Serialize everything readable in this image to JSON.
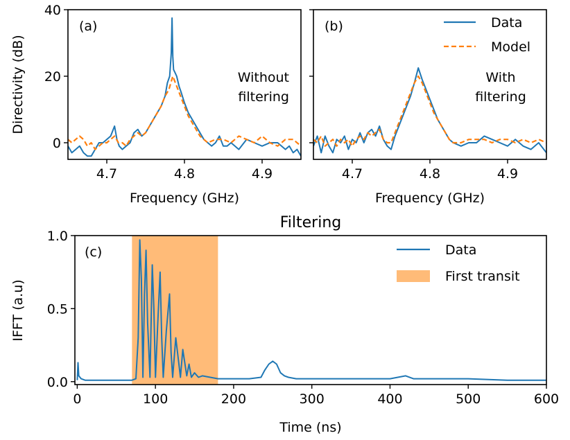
{
  "figure": {
    "title": "Filtering",
    "colors": {
      "data": "#1f77b4",
      "model": "#ff7f0e",
      "transit": "#ffbb78"
    }
  },
  "chart_data": [
    {
      "type": "line",
      "panel": "(a)",
      "annotation": [
        "Without",
        "filtering"
      ],
      "xlabel": "Frequency (GHz)",
      "ylabel": "Directivity (dB)",
      "xlim": [
        4.65,
        4.95
      ],
      "ylim": [
        -5,
        40
      ],
      "xticks": [
        4.7,
        4.8,
        4.9
      ],
      "xtick_labels": [
        "4.7",
        "4.8",
        "4.9"
      ],
      "yticks": [
        0,
        20,
        40
      ],
      "ytick_labels": [
        "0",
        "20",
        "40"
      ],
      "series": [
        {
          "name": "Data",
          "x": [
            4.65,
            4.655,
            4.66,
            4.665,
            4.67,
            4.675,
            4.68,
            4.685,
            4.69,
            4.695,
            4.7,
            4.705,
            4.71,
            4.713,
            4.716,
            4.72,
            4.725,
            4.73,
            4.735,
            4.74,
            4.745,
            4.75,
            4.755,
            4.76,
            4.765,
            4.77,
            4.775,
            4.778,
            4.781,
            4.783,
            4.784,
            4.785,
            4.786,
            4.788,
            4.79,
            4.793,
            4.796,
            4.8,
            4.805,
            4.81,
            4.815,
            4.82,
            4.825,
            4.83,
            4.835,
            4.84,
            4.845,
            4.85,
            4.855,
            4.86,
            4.87,
            4.88,
            4.89,
            4.9,
            4.91,
            4.92,
            4.93,
            4.935,
            4.94,
            4.945,
            4.95
          ],
          "values": [
            -1,
            -3,
            -2,
            -1,
            -3,
            -4,
            -4,
            -2,
            0,
            0,
            1,
            2,
            5,
            1,
            -1,
            -2,
            -1,
            0,
            3,
            4,
            2,
            3,
            5,
            7,
            9,
            11,
            14,
            18,
            20,
            27,
            37.5,
            26,
            22,
            21,
            20,
            17,
            15,
            12,
            9,
            7,
            5,
            3,
            1,
            0,
            -1,
            0,
            2,
            -1,
            -1,
            0,
            -2,
            1,
            0,
            -1,
            0,
            0,
            -2,
            -1,
            -3,
            -2,
            -4
          ]
        },
        {
          "name": "Model",
          "x": [
            4.65,
            4.655,
            4.66,
            4.665,
            4.67,
            4.675,
            4.68,
            4.685,
            4.69,
            4.695,
            4.7,
            4.705,
            4.71,
            4.715,
            4.72,
            4.725,
            4.73,
            4.735,
            4.74,
            4.745,
            4.75,
            4.755,
            4.76,
            4.765,
            4.77,
            4.775,
            4.78,
            4.785,
            4.79,
            4.795,
            4.8,
            4.805,
            4.81,
            4.815,
            4.82,
            4.825,
            4.83,
            4.84,
            4.85,
            4.86,
            4.87,
            4.88,
            4.89,
            4.9,
            4.91,
            4.92,
            4.93,
            4.94,
            4.95
          ],
          "values": [
            1,
            0,
            1,
            2,
            1,
            -1,
            0,
            -2,
            -1,
            0,
            0,
            1,
            2,
            0,
            0,
            -1,
            1,
            2,
            3,
            2,
            3,
            5,
            7,
            9,
            11,
            14,
            16,
            20,
            17,
            14,
            11,
            8,
            6,
            4,
            2,
            1,
            0,
            1,
            1,
            0,
            2,
            1,
            0,
            2,
            0,
            -1,
            1,
            1,
            -1
          ]
        }
      ]
    },
    {
      "type": "line",
      "panel": "(b)",
      "annotation": [
        "With",
        "filtering"
      ],
      "xlabel": "Frequency (GHz)",
      "ylabel": "",
      "xlim": [
        4.65,
        4.95
      ],
      "ylim": [
        -5,
        40
      ],
      "xticks": [
        4.7,
        4.8,
        4.9
      ],
      "xtick_labels": [
        "4.7",
        "4.8",
        "4.9"
      ],
      "yticks": [
        0,
        20,
        40
      ],
      "legend": {
        "position": "top-right",
        "entries": [
          "Data",
          "Model"
        ]
      },
      "series": [
        {
          "name": "Data",
          "x": [
            4.65,
            4.655,
            4.66,
            4.665,
            4.67,
            4.675,
            4.68,
            4.685,
            4.69,
            4.695,
            4.7,
            4.705,
            4.71,
            4.715,
            4.72,
            4.725,
            4.73,
            4.735,
            4.74,
            4.745,
            4.75,
            4.755,
            4.76,
            4.765,
            4.77,
            4.775,
            4.78,
            4.785,
            4.79,
            4.795,
            4.8,
            4.805,
            4.81,
            4.815,
            4.82,
            4.825,
            4.83,
            4.84,
            4.85,
            4.86,
            4.87,
            4.88,
            4.89,
            4.9,
            4.91,
            4.92,
            4.93,
            4.94,
            4.95
          ],
          "values": [
            -1,
            2,
            -3,
            2,
            -1,
            -3,
            1,
            0,
            2,
            -2,
            1,
            0,
            3,
            0,
            3,
            4,
            2,
            5,
            1,
            -1,
            -2,
            2,
            5,
            8,
            11,
            14,
            18,
            22.5,
            19,
            16,
            13,
            10,
            7,
            5,
            3,
            1,
            0,
            -1,
            0,
            0,
            2,
            1,
            0,
            -1,
            1,
            -1,
            -2,
            0,
            -3
          ]
        },
        {
          "name": "Model",
          "x": [
            4.65,
            4.655,
            4.66,
            4.665,
            4.67,
            4.675,
            4.68,
            4.685,
            4.69,
            4.695,
            4.7,
            4.705,
            4.71,
            4.715,
            4.72,
            4.725,
            4.73,
            4.735,
            4.74,
            4.745,
            4.75,
            4.755,
            4.76,
            4.765,
            4.77,
            4.775,
            4.78,
            4.785,
            4.79,
            4.795,
            4.8,
            4.805,
            4.81,
            4.815,
            4.82,
            4.825,
            4.83,
            4.84,
            4.85,
            4.86,
            4.87,
            4.88,
            4.89,
            4.9,
            4.91,
            4.92,
            4.93,
            4.94,
            4.95
          ],
          "values": [
            1,
            0,
            2,
            -1,
            0,
            1,
            -1,
            1,
            0,
            1,
            -1,
            1,
            2,
            1,
            3,
            2,
            3,
            4,
            1,
            0,
            0,
            3,
            6,
            9,
            12,
            15,
            18,
            20,
            18,
            15,
            12,
            9,
            7,
            5,
            3,
            1,
            0,
            0,
            1,
            1,
            1,
            0,
            1,
            1,
            0,
            1,
            0,
            1,
            0
          ]
        }
      ]
    },
    {
      "type": "line",
      "panel": "(c)",
      "title": "Filtering",
      "xlabel": "Time (ns)",
      "ylabel": "IFFT (a.u)",
      "xlim": [
        -3,
        600
      ],
      "ylim": [
        -0.02,
        1.0
      ],
      "xticks": [
        0,
        100,
        200,
        300,
        400,
        500,
        600
      ],
      "xtick_labels": [
        "0",
        "100",
        "200",
        "300",
        "400",
        "500",
        "600"
      ],
      "yticks": [
        0.0,
        0.5,
        1.0
      ],
      "ytick_labels": [
        "0.0",
        "0.5",
        "1.0"
      ],
      "legend": {
        "position": "top-right",
        "entries": [
          "Data",
          "First transit"
        ]
      },
      "shaded_span": {
        "name": "First transit",
        "x0": 70,
        "x1": 180
      },
      "series": [
        {
          "name": "Data",
          "x": [
            0,
            1,
            2,
            5,
            10,
            30,
            60,
            70,
            75,
            78,
            80,
            82,
            84,
            86,
            88,
            90,
            93,
            96,
            98,
            100,
            103,
            106,
            108,
            110,
            114,
            118,
            120,
            122,
            126,
            130,
            132,
            135,
            140,
            143,
            146,
            150,
            155,
            160,
            170,
            180,
            200,
            220,
            235,
            240,
            245,
            250,
            255,
            260,
            265,
            270,
            280,
            300,
            350,
            400,
            410,
            420,
            430,
            450,
            500,
            550,
            600
          ],
          "values": [
            0.01,
            0.13,
            0.04,
            0.02,
            0.01,
            0.01,
            0.01,
            0.01,
            0.02,
            0.3,
            0.97,
            0.7,
            0.03,
            0.6,
            0.9,
            0.4,
            0.03,
            0.8,
            0.5,
            0.03,
            0.4,
            0.75,
            0.3,
            0.03,
            0.35,
            0.6,
            0.2,
            0.03,
            0.3,
            0.12,
            0.03,
            0.22,
            0.04,
            0.12,
            0.03,
            0.06,
            0.03,
            0.04,
            0.03,
            0.02,
            0.02,
            0.02,
            0.03,
            0.08,
            0.12,
            0.14,
            0.12,
            0.06,
            0.04,
            0.03,
            0.02,
            0.02,
            0.02,
            0.02,
            0.03,
            0.04,
            0.02,
            0.02,
            0.02,
            0.01,
            0.01
          ]
        }
      ]
    }
  ]
}
